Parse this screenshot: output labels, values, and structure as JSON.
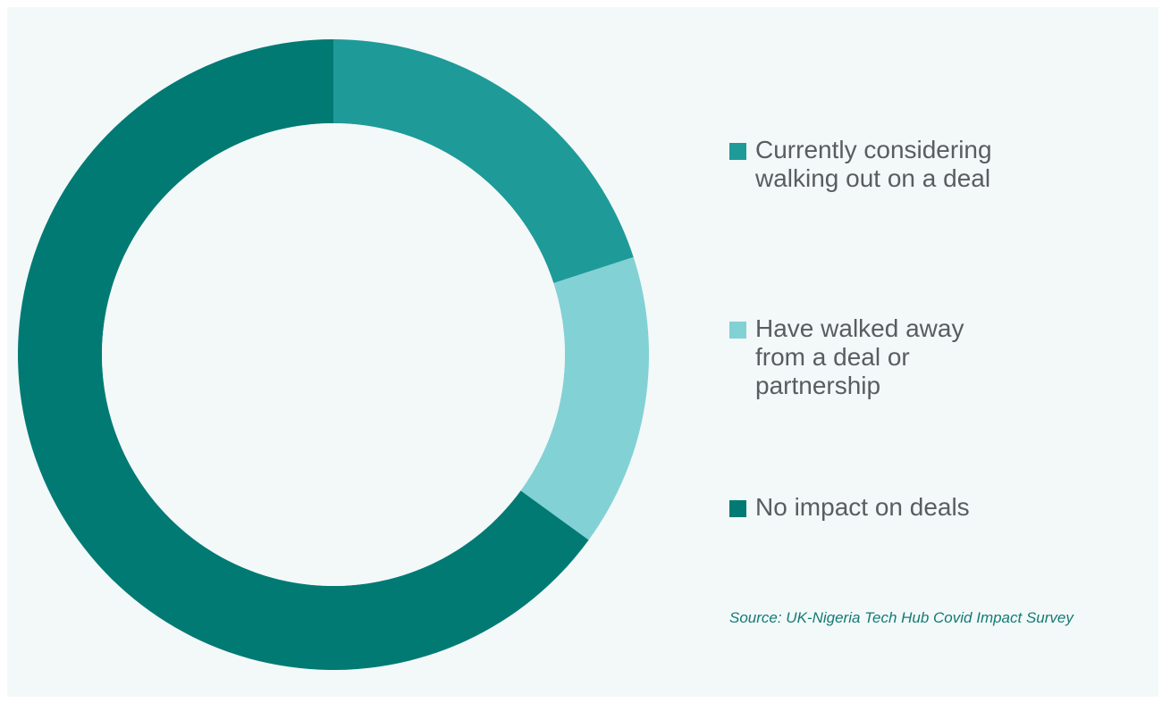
{
  "chart_data": {
    "type": "pie",
    "donut": true,
    "title": "",
    "series": [
      {
        "name": "Currently considering walking out on a deal",
        "value": 20,
        "color": "#1e9a99"
      },
      {
        "name": "Have walked away from a deal or partnership",
        "value": 15,
        "color": "#82d1d5"
      },
      {
        "name": "No impact on deals",
        "value": 65,
        "color": "#017a74"
      }
    ],
    "legend_position": "right",
    "source": "Source: UK-Nigeria Tech Hub Covid Impact Survey"
  },
  "colors": {
    "background": "#f3f8f9",
    "legend_text": "#5a5d60",
    "source_text": "#137b74"
  }
}
